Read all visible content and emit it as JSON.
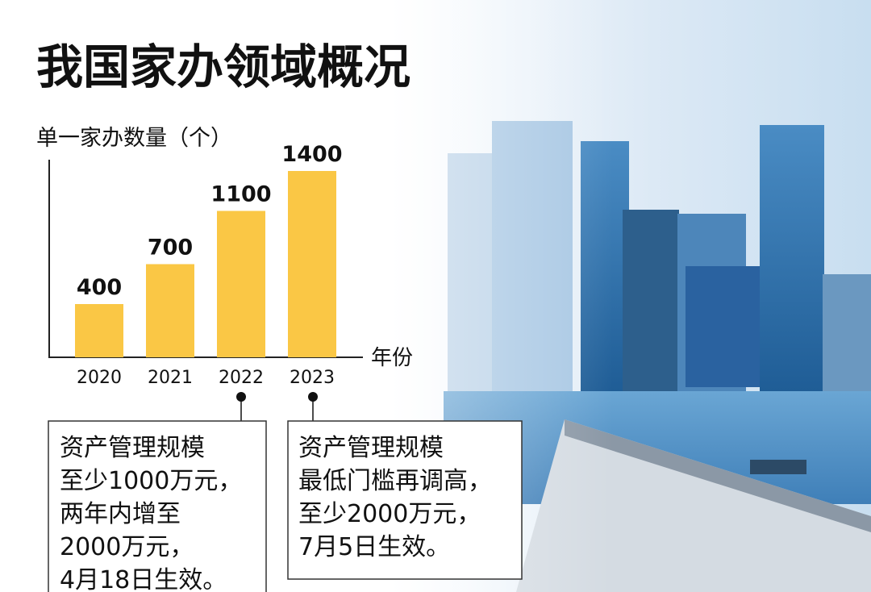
{
  "chart_data": {
    "type": "bar",
    "title": "我国家办领域概况",
    "y_label": "单一家办数量（个）",
    "x_label": "年份",
    "categories": [
      "2020",
      "2021",
      "2022",
      "2023"
    ],
    "values": [
      400,
      700,
      1100,
      1400
    ],
    "color": "#fac745",
    "annotations": [
      {
        "lines": [
          "资产管理规模",
          "至少1000万元，",
          "两年内增至",
          "2000万元，",
          "4月18日生效。"
        ]
      },
      {
        "lines": [
          "资产管理规模",
          "最低门槛再调高，",
          "至少2000万元，",
          "7月5日生效。"
        ]
      }
    ]
  }
}
